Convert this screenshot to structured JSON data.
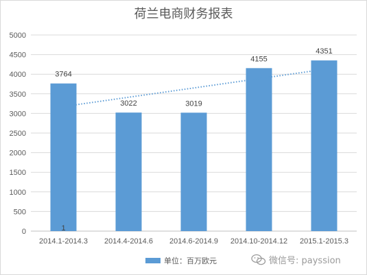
{
  "chart_data": {
    "type": "bar",
    "title": "荷兰电商财务报表",
    "categories": [
      "2014.1-2014.3",
      "2014.4-2014.6",
      "2014.6-2014.9",
      "2014.10-2014.12",
      "2015.1-2015.3"
    ],
    "series": [
      {
        "name": "单位：百万欧元",
        "values": [
          3764,
          3022,
          3019,
          4155,
          4351
        ],
        "color": "#5b9bd5"
      }
    ],
    "data_labels": [
      "3764",
      "3022",
      "3019",
      "4155",
      "4351"
    ],
    "trendline": {
      "type": "linear",
      "style": "dotted",
      "color": "#5b9bd5"
    },
    "annotation": "1",
    "ylim": [
      0,
      5000
    ],
    "yticks": [
      0,
      500,
      1000,
      1500,
      2000,
      2500,
      3000,
      3500,
      4000,
      4500,
      5000
    ],
    "grid": true,
    "legend_position": "bottom"
  },
  "watermark": {
    "text": "微信号: payssion",
    "icon": "wechat-icon"
  }
}
